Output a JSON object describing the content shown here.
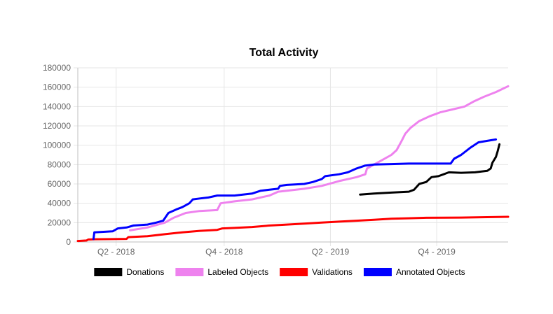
{
  "chart_data": {
    "type": "line",
    "title": "Total Activity",
    "xlabel": "",
    "ylabel": "",
    "ylim": [
      0,
      180000
    ],
    "y_ticks": [
      0,
      20000,
      40000,
      60000,
      80000,
      100000,
      120000,
      140000,
      160000,
      180000
    ],
    "x_range": [
      0,
      24.7
    ],
    "x_ticks": [
      {
        "label": "Q2 - 2018",
        "x": 2.2
      },
      {
        "label": "Q4 - 2018",
        "x": 8.4
      },
      {
        "label": "Q2 - 2019",
        "x": 14.5
      },
      {
        "label": "Q4 - 2019",
        "x": 20.6
      }
    ],
    "grid": true,
    "legend_position": "bottom",
    "series": [
      {
        "name": "Donations",
        "color": "#000000",
        "points": [
          [
            16.2,
            49000
          ],
          [
            17.0,
            50000
          ],
          [
            18.0,
            51000
          ],
          [
            19.0,
            52000
          ],
          [
            19.3,
            54000
          ],
          [
            19.6,
            60000
          ],
          [
            20.0,
            62000
          ],
          [
            20.3,
            67000
          ],
          [
            20.7,
            68000
          ],
          [
            21.0,
            70000
          ],
          [
            21.3,
            72000
          ],
          [
            22.0,
            71500
          ],
          [
            22.8,
            72000
          ],
          [
            23.5,
            73500
          ],
          [
            23.7,
            76000
          ],
          [
            23.8,
            82000
          ],
          [
            24.0,
            88000
          ],
          [
            24.1,
            94000
          ],
          [
            24.2,
            101000
          ]
        ]
      },
      {
        "name": "Labeled Objects",
        "color": "#ee82ee",
        "points": [
          [
            3.0,
            12000
          ],
          [
            4.0,
            15000
          ],
          [
            5.0,
            20000
          ],
          [
            5.5,
            25000
          ],
          [
            6.2,
            30000
          ],
          [
            7.0,
            32000
          ],
          [
            8.0,
            33000
          ],
          [
            8.2,
            40000
          ],
          [
            9.0,
            42000
          ],
          [
            10.0,
            44000
          ],
          [
            11.0,
            48000
          ],
          [
            11.5,
            52000
          ],
          [
            12.0,
            53000
          ],
          [
            13.0,
            55000
          ],
          [
            14.0,
            58000
          ],
          [
            15.0,
            63000
          ],
          [
            16.0,
            67000
          ],
          [
            16.5,
            70000
          ],
          [
            16.6,
            76000
          ],
          [
            17.0,
            80000
          ],
          [
            17.5,
            85000
          ],
          [
            18.0,
            90000
          ],
          [
            18.3,
            95000
          ],
          [
            18.6,
            105000
          ],
          [
            18.8,
            112000
          ],
          [
            19.1,
            118000
          ],
          [
            19.6,
            125000
          ],
          [
            20.2,
            130000
          ],
          [
            20.8,
            134000
          ],
          [
            21.5,
            137000
          ],
          [
            22.2,
            140000
          ],
          [
            22.7,
            145000
          ],
          [
            23.3,
            150000
          ],
          [
            24.0,
            155000
          ],
          [
            24.7,
            161000
          ]
        ]
      },
      {
        "name": "Validations",
        "color": "#ff0000",
        "points": [
          [
            0.0,
            1000
          ],
          [
            0.5,
            1500
          ],
          [
            0.6,
            2500
          ],
          [
            1.0,
            2800
          ],
          [
            2.0,
            3000
          ],
          [
            2.8,
            3200
          ],
          [
            2.9,
            5000
          ],
          [
            4.0,
            6000
          ],
          [
            5.0,
            8000
          ],
          [
            6.0,
            10000
          ],
          [
            7.0,
            11500
          ],
          [
            8.0,
            12500
          ],
          [
            8.3,
            14000
          ],
          [
            9.0,
            14500
          ],
          [
            10.0,
            15500
          ],
          [
            11.0,
            17000
          ],
          [
            12.0,
            18000
          ],
          [
            13.0,
            19000
          ],
          [
            14.0,
            20000
          ],
          [
            15.0,
            21000
          ],
          [
            16.0,
            22000
          ],
          [
            17.0,
            23000
          ],
          [
            18.0,
            24000
          ],
          [
            19.0,
            24500
          ],
          [
            20.0,
            25000
          ],
          [
            22.0,
            25200
          ],
          [
            24.7,
            26000
          ]
        ]
      },
      {
        "name": "Annotated Objects",
        "color": "#0000ff",
        "points": [
          [
            0.9,
            3000
          ],
          [
            0.95,
            10000
          ],
          [
            2.0,
            11000
          ],
          [
            2.3,
            14000
          ],
          [
            2.8,
            15000
          ],
          [
            3.2,
            17000
          ],
          [
            4.0,
            18000
          ],
          [
            4.5,
            20000
          ],
          [
            4.9,
            22000
          ],
          [
            5.2,
            30000
          ],
          [
            5.7,
            34000
          ],
          [
            6.0,
            36000
          ],
          [
            6.4,
            40000
          ],
          [
            6.6,
            44000
          ],
          [
            7.0,
            45000
          ],
          [
            7.5,
            46000
          ],
          [
            8.0,
            48000
          ],
          [
            9.0,
            48000
          ],
          [
            10.0,
            50000
          ],
          [
            10.5,
            53000
          ],
          [
            11.0,
            54000
          ],
          [
            11.5,
            55000
          ],
          [
            11.6,
            58000
          ],
          [
            12.0,
            59000
          ],
          [
            13.0,
            60000
          ],
          [
            13.5,
            62000
          ],
          [
            14.0,
            65000
          ],
          [
            14.2,
            68000
          ],
          [
            15.0,
            70000
          ],
          [
            15.5,
            72000
          ],
          [
            16.0,
            76000
          ],
          [
            16.5,
            79000
          ],
          [
            17.0,
            80000
          ],
          [
            18.0,
            80500
          ],
          [
            19.0,
            81000
          ],
          [
            20.0,
            81000
          ],
          [
            21.0,
            81000
          ],
          [
            21.4,
            81000
          ],
          [
            21.6,
            86000
          ],
          [
            22.0,
            90000
          ],
          [
            22.5,
            97000
          ],
          [
            23.0,
            103000
          ],
          [
            23.5,
            104500
          ],
          [
            24.0,
            106000
          ]
        ]
      }
    ]
  }
}
